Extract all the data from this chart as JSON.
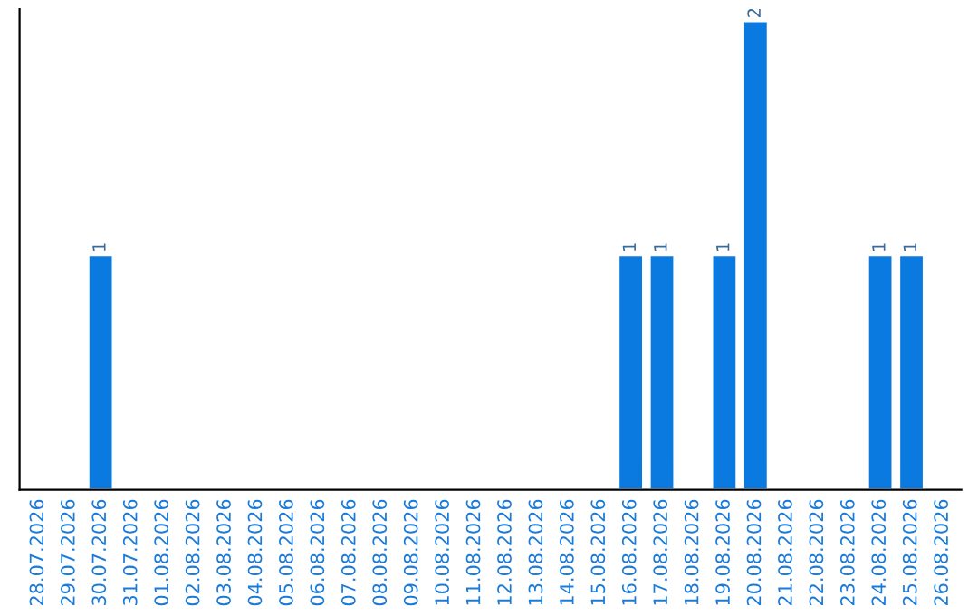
{
  "chart_data": {
    "type": "bar",
    "categories": [
      "28.07.2026",
      "29.07.2026",
      "30.07.2026",
      "31.07.2026",
      "01.08.2026",
      "02.08.2026",
      "03.08.2026",
      "04.08.2026",
      "05.08.2026",
      "06.08.2026",
      "07.08.2026",
      "08.08.2026",
      "09.08.2026",
      "10.08.2026",
      "11.08.2026",
      "12.08.2026",
      "13.08.2026",
      "14.08.2026",
      "15.08.2026",
      "16.08.2026",
      "17.08.2026",
      "18.08.2026",
      "19.08.2026",
      "20.08.2026",
      "21.08.2026",
      "22.08.2026",
      "23.08.2026",
      "24.08.2026",
      "25.08.2026",
      "26.08.2026"
    ],
    "values": [
      null,
      null,
      1,
      null,
      null,
      null,
      null,
      null,
      null,
      null,
      null,
      null,
      null,
      null,
      null,
      null,
      null,
      null,
      null,
      1,
      1,
      null,
      1,
      2,
      null,
      null,
      null,
      1,
      1,
      null
    ],
    "value_labels": [
      null,
      null,
      "1",
      null,
      null,
      null,
      null,
      null,
      null,
      null,
      null,
      null,
      null,
      null,
      null,
      null,
      null,
      null,
      null,
      "1",
      "1",
      null,
      "1",
      "2",
      null,
      null,
      null,
      "1",
      "1",
      null
    ],
    "color": "#0a7ae0",
    "ylim": [
      0,
      2.05
    ],
    "tick_labels": "x",
    "grid": false,
    "legend": false
  }
}
